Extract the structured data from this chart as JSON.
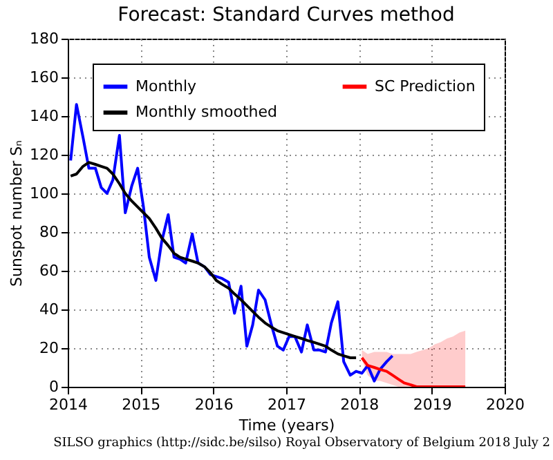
{
  "chart_data": {
    "type": "line",
    "title": "Forecast: Standard Curves method",
    "xlabel": "Time (years)",
    "ylabel": "Sunspot number Sₙ",
    "annotations": [
      "SILSO graphics (http://sidc.be/silso)  Royal Observatory of Belgium  2018 July 2"
    ],
    "xlim": [
      2014,
      2020
    ],
    "xticks": [
      2014,
      2015,
      2016,
      2017,
      2018,
      2019,
      2020
    ],
    "ylim": [
      0,
      180
    ],
    "yticks": [
      0,
      20,
      40,
      60,
      80,
      100,
      120,
      140,
      160,
      180
    ],
    "grid": true,
    "legend": "top left",
    "line_style": "solid",
    "marker": "none",
    "series": [
      {
        "name": "Monthly",
        "color": "#0000ff",
        "x": [
          2014.04,
          2014.12,
          2014.21,
          2014.29,
          2014.38,
          2014.46,
          2014.54,
          2014.62,
          2014.71,
          2014.79,
          2014.88,
          2014.96,
          2015.04,
          2015.12,
          2015.21,
          2015.29,
          2015.38,
          2015.46,
          2015.54,
          2015.62,
          2015.71,
          2015.79,
          2015.88,
          2015.96,
          2016.04,
          2016.12,
          2016.21,
          2016.29,
          2016.38,
          2016.46,
          2016.54,
          2016.62,
          2016.71,
          2016.79,
          2016.88,
          2016.96,
          2017.04,
          2017.12,
          2017.21,
          2017.29,
          2017.38,
          2017.46,
          2017.54,
          2017.62,
          2017.71,
          2017.79,
          2017.88,
          2017.96,
          2018.04,
          2018.12,
          2018.21,
          2018.29,
          2018.38,
          2018.46
        ],
        "values": [
          117,
          146,
          129,
          113,
          113,
          103,
          100,
          107,
          130,
          90,
          104,
          113,
          93,
          67,
          55,
          75,
          89,
          67,
          66,
          64,
          79,
          64,
          62,
          58,
          57,
          56,
          54,
          38,
          52,
          21,
          32,
          50,
          45,
          33,
          21,
          19,
          26,
          26,
          18,
          32,
          19,
          19,
          18,
          33,
          44,
          13,
          6,
          8,
          7,
          11,
          3,
          9,
          13,
          16
        ]
      },
      {
        "name": "Monthly smoothed",
        "color": "#000000",
        "x": [
          2014.04,
          2014.12,
          2014.21,
          2014.29,
          2014.38,
          2014.46,
          2014.54,
          2014.62,
          2014.71,
          2014.79,
          2014.88,
          2014.96,
          2015.04,
          2015.12,
          2015.21,
          2015.29,
          2015.38,
          2015.46,
          2015.54,
          2015.62,
          2015.71,
          2015.79,
          2015.88,
          2015.96,
          2016.04,
          2016.12,
          2016.21,
          2016.29,
          2016.38,
          2016.46,
          2016.54,
          2016.62,
          2016.71,
          2016.79,
          2016.88,
          2016.96,
          2017.04,
          2017.12,
          2017.21,
          2017.29,
          2017.38,
          2017.46,
          2017.54,
          2017.62,
          2017.71,
          2017.79,
          2017.88,
          2017.96
        ],
        "values": [
          109,
          110,
          114,
          116,
          115,
          114,
          113,
          110,
          105,
          100,
          96,
          93,
          90,
          87,
          82,
          77,
          73,
          69,
          67,
          66,
          65,
          64,
          62,
          59,
          55,
          53,
          51,
          48,
          45,
          42,
          39,
          36,
          33,
          31,
          29,
          28,
          27,
          26,
          25,
          24,
          23,
          22,
          21,
          19,
          17,
          16,
          15,
          15
        ]
      },
      {
        "name": "SC Prediction",
        "color": "#ff0000",
        "x": [
          2018.04,
          2018.12,
          2018.21,
          2018.29,
          2018.38,
          2018.46,
          2018.54,
          2018.62,
          2018.71,
          2018.79,
          2018.88,
          2018.96,
          2019.04,
          2019.12,
          2019.21,
          2019.29,
          2019.38,
          2019.46
        ],
        "values": [
          15,
          11,
          10,
          9,
          8,
          6,
          4,
          2,
          1,
          0,
          0,
          0,
          0,
          0,
          0,
          0,
          0,
          0
        ],
        "lower": [
          14,
          6,
          3,
          3,
          2,
          1,
          0,
          0,
          0,
          0,
          0,
          0,
          0,
          0,
          0,
          0,
          0,
          0
        ],
        "upper": [
          19,
          17,
          18,
          18,
          18,
          17,
          17,
          17,
          17,
          18,
          19,
          20,
          22,
          23,
          25,
          26,
          28,
          29
        ]
      }
    ]
  }
}
